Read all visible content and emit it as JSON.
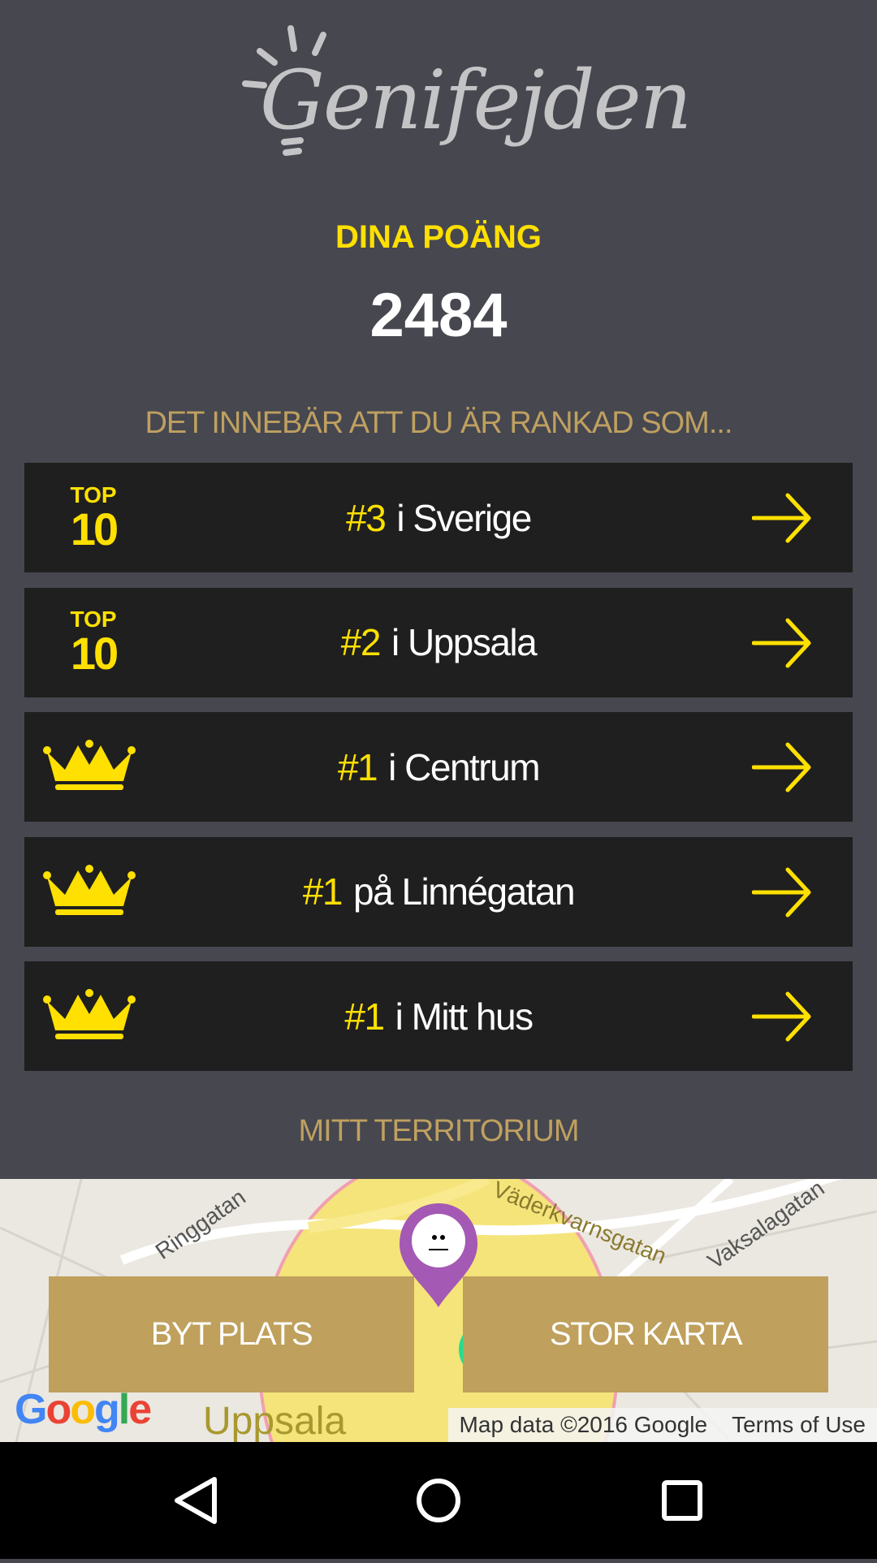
{
  "app": {
    "logo_text": "Genifejden"
  },
  "score": {
    "label": "DINA POÄNG",
    "value": "2484"
  },
  "ranking": {
    "intro": "DET INNEBÄR ATT DU ÄR RANKAD SOM...",
    "items": [
      {
        "badge": "top10",
        "badge_top": "TOP",
        "badge_num": "10",
        "rank": "#3",
        "place": "i Sverige"
      },
      {
        "badge": "top10",
        "badge_top": "TOP",
        "badge_num": "10",
        "rank": "#2",
        "place": "i Uppsala"
      },
      {
        "badge": "crown",
        "rank": "#1",
        "place": "i Centrum"
      },
      {
        "badge": "crown",
        "rank": "#1",
        "place": "på Linnégatan"
      },
      {
        "badge": "crown",
        "rank": "#1",
        "place": "i Mitt hus"
      }
    ]
  },
  "territory": {
    "title": "MITT TERRITORIUM",
    "map": {
      "street_labels": [
        "Ringgatan",
        "Väderkvarnsgatan",
        "Vaksalagatan",
        "Uppsala"
      ],
      "attribution": "Map data ©2016 Google",
      "terms": "Terms of Use",
      "google_logo": "Google"
    },
    "buttons": {
      "change_place": "BYT PLATS",
      "big_map": "STOR KARTA"
    }
  },
  "colors": {
    "accent": "#ffe000",
    "gold": "#bfa05c",
    "background": "#46474f",
    "row": "#1f1f1f"
  }
}
